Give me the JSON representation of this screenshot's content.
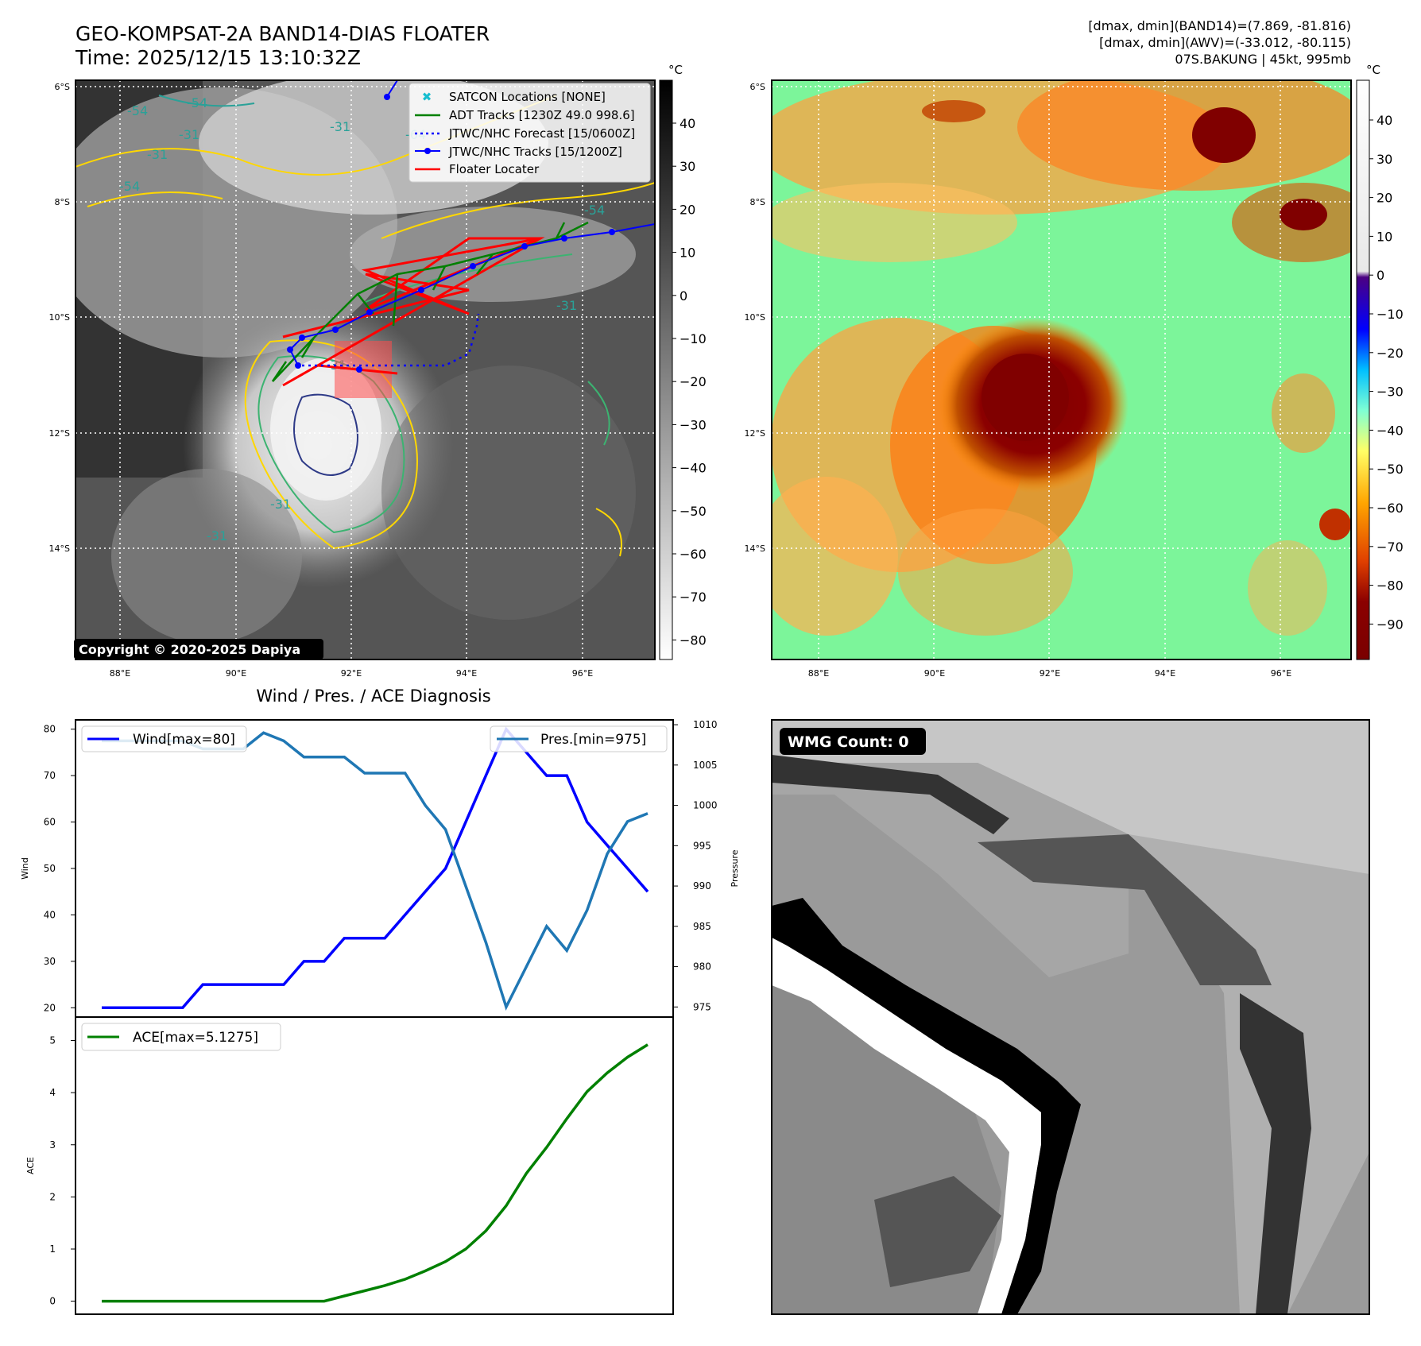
{
  "header": {
    "title_line1": "GEO-KOMPSAT-2A BAND14-DIAS FLOATER",
    "title_line2": "Time: 2025/12/15 13:10:32Z",
    "info_line1": "[dmax, dmin](BAND14)=(7.869, -81.816)",
    "info_line2": "[dmax, dmin](AWV)=(-33.012, -80.115)",
    "info_line3": "07S.BAKUNG | 45kt, 995mb"
  },
  "colors": {
    "wind": "#0000ff",
    "pressure": "#1f77b4",
    "ace": "#008000",
    "adt": "#008000",
    "jtwc_track": "#0000ff",
    "floater": "#ff0000",
    "satcon": "#17becf"
  },
  "map_axes": {
    "lat_ticks": [
      "6°S",
      "8°S",
      "10°S",
      "12°S",
      "14°S"
    ],
    "lon_ticks": [
      "88°E",
      "90°E",
      "92°E",
      "94°E",
      "96°E"
    ]
  },
  "ir_map": {
    "legend": [
      {
        "label": "SATCON Locations [NONE]",
        "icon": "x-marker-icon"
      },
      {
        "label": "ADT Tracks [1230Z 49.0 998.6]",
        "icon": "green-line-icon"
      },
      {
        "label": "JTWC/NHC Forecast [15/0600Z]",
        "icon": "dotted-line-icon"
      },
      {
        "label": "JTWC/NHC Tracks [15/1200Z]",
        "icon": "line-dot-icon"
      },
      {
        "label": "Floater Locater",
        "icon": "red-line-icon"
      }
    ],
    "copyright": "Copyright © 2020-2025 Dapiya",
    "contour_labels": [
      "-54",
      "-54",
      "-31",
      "-31",
      "-54",
      "-31",
      "-64",
      "-54",
      "-31",
      "-31",
      "-31",
      "-31"
    ],
    "colorbar_unit": "°C",
    "colorbar_ticks": [
      "40",
      "30",
      "20",
      "10",
      "0",
      "−10",
      "−20",
      "−30",
      "−40",
      "−50",
      "−60",
      "−70",
      "−80"
    ]
  },
  "awv_map": {
    "colorbar_unit": "°C",
    "colorbar_ticks": [
      "40",
      "30",
      "20",
      "10",
      "0",
      "−10",
      "−20",
      "−30",
      "−40",
      "−50",
      "−60",
      "−70",
      "−80",
      "−90"
    ]
  },
  "wmg": {
    "label": "WMG Count: 0"
  },
  "chart_data": [
    {
      "type": "line",
      "title": "Wind / Pres. / ACE Diagnosis",
      "x": [
        0,
        1,
        2,
        3,
        4,
        5,
        6,
        7,
        8,
        9,
        10,
        11,
        12,
        13,
        14,
        15,
        16,
        17,
        18,
        19,
        20,
        21,
        22,
        23,
        24,
        25,
        26,
        27
      ],
      "series": [
        {
          "name": "Wind[max=80]",
          "axis": "left",
          "values": [
            20,
            20,
            20,
            20,
            20,
            25,
            25,
            25,
            25,
            25,
            30,
            30,
            35,
            35,
            35,
            40,
            45,
            50,
            60,
            70,
            80,
            75,
            70,
            70,
            60,
            55,
            50,
            45
          ]
        },
        {
          "name": "Pres.[min=975]",
          "axis": "right",
          "values": [
            1008,
            1008,
            1008,
            1008,
            1008,
            1007,
            1007,
            1007,
            1009,
            1008,
            1006,
            1006,
            1006,
            1004,
            1004,
            1004,
            1000,
            997,
            990,
            983,
            975,
            980,
            985,
            982,
            987,
            994,
            998,
            999
          ]
        }
      ],
      "ylabel": "Wind",
      "ylim": [
        18,
        82
      ],
      "y_ticks": [
        20,
        30,
        40,
        50,
        60,
        70,
        80
      ],
      "y2label": "Pressure",
      "y2lim": [
        973.75,
        1010.6
      ],
      "y2_ticks": [
        975,
        980,
        985,
        990,
        995,
        1000,
        1005,
        1010
      ],
      "legend": [
        "top-left",
        "top-right"
      ],
      "grid": false
    },
    {
      "type": "line",
      "x": [
        0,
        1,
        2,
        3,
        4,
        5,
        6,
        7,
        8,
        9,
        10,
        11,
        12,
        13,
        14,
        15,
        16,
        17,
        18,
        19,
        20,
        21,
        22,
        23,
        24,
        25,
        26,
        27
      ],
      "series": [
        {
          "name": "ACE[max=5.1275]",
          "values": [
            0,
            0,
            0,
            0,
            0,
            0,
            0,
            0,
            0,
            0,
            0,
            0,
            0.1,
            0.2,
            0.3,
            0.42,
            0.58,
            0.76,
            1.0,
            1.35,
            1.83,
            2.45,
            2.95,
            3.5,
            4.02,
            4.38,
            4.68,
            4.92
          ]
        }
      ],
      "ylabel": "ACE",
      "ylim": [
        -0.25,
        5.45
      ],
      "y_ticks": [
        0,
        1,
        2,
        3,
        4,
        5
      ],
      "legend": "top-left",
      "grid": false
    }
  ]
}
